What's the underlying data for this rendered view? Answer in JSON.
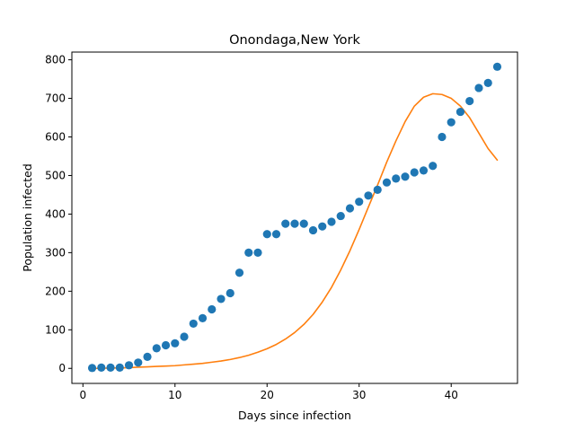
{
  "chart_data": {
    "type": "scatter",
    "title": "Onondaga,New York",
    "xlabel": "Days since infection",
    "ylabel": "Population infected",
    "xlim": [
      -1.2,
      47.2
    ],
    "ylim": [
      -39,
      820
    ],
    "xticks": [
      0,
      10,
      20,
      30,
      40
    ],
    "yticks": [
      0,
      100,
      200,
      300,
      400,
      500,
      600,
      700,
      800
    ],
    "grid": false,
    "legend": "none",
    "colors": {
      "observed": "#1f77b4",
      "model": "#ff7f0e"
    },
    "series": [
      {
        "type": "scatter",
        "x": [
          1,
          2,
          3,
          4,
          5,
          6,
          7,
          8,
          9,
          10,
          11,
          12,
          13,
          14,
          15,
          16,
          17,
          18,
          19,
          20,
          21,
          22,
          23,
          24,
          25,
          26,
          27,
          28,
          29,
          30,
          31,
          32,
          33,
          34,
          35,
          36,
          37,
          38,
          39,
          40,
          41,
          42,
          43,
          44,
          45
        ],
        "y": [
          1,
          2,
          2,
          2,
          8,
          15,
          30,
          52,
          60,
          65,
          82,
          116,
          130,
          153,
          180,
          195,
          248,
          300,
          300,
          348,
          348,
          375,
          375,
          375,
          358,
          368,
          380,
          395,
          415,
          432,
          448,
          463,
          482,
          492,
          497,
          508,
          513,
          525,
          600,
          638,
          665,
          693,
          727,
          740,
          782
        ]
      },
      {
        "type": "line",
        "x": [
          1,
          2,
          3,
          4,
          5,
          6,
          7,
          8,
          9,
          10,
          11,
          12,
          13,
          14,
          15,
          16,
          17,
          18,
          19,
          20,
          21,
          22,
          23,
          24,
          25,
          26,
          27,
          28,
          29,
          30,
          31,
          32,
          33,
          34,
          35,
          36,
          37,
          38,
          39,
          40,
          41,
          42,
          43,
          44,
          45
        ],
        "y": [
          0,
          0,
          1,
          1,
          2,
          3,
          4,
          5,
          6,
          7,
          9,
          11,
          13,
          16,
          19,
          23,
          28,
          34,
          42,
          51,
          62,
          76,
          93,
          114,
          140,
          172,
          210,
          255,
          305,
          360,
          418,
          475,
          535,
          590,
          640,
          680,
          703,
          712,
          710,
          700,
          680,
          650,
          610,
          570,
          540
        ]
      }
    ]
  }
}
